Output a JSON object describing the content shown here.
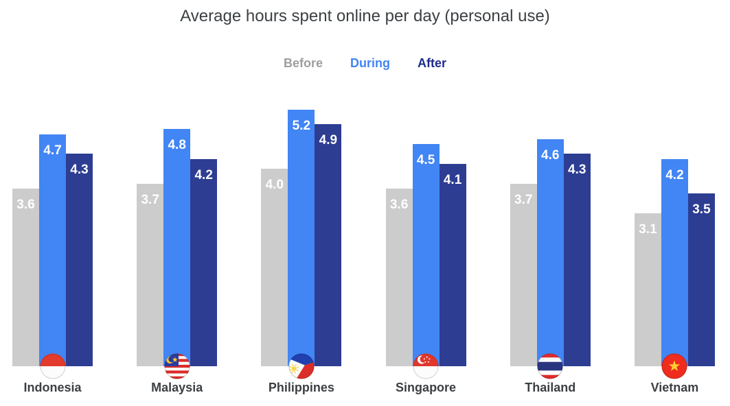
{
  "title": "Average hours spent online per day (personal use)",
  "legend": [
    {
      "label": "Before",
      "color": "#9e9e9e"
    },
    {
      "label": "During",
      "color": "#4285f4"
    },
    {
      "label": "After",
      "color": "#1e2b8c"
    }
  ],
  "chart_data": {
    "type": "bar",
    "title": "Average hours spent online per day (personal use)",
    "categories": [
      "Indonesia",
      "Malaysia",
      "Philippines",
      "Singapore",
      "Thailand",
      "Vietnam"
    ],
    "series": [
      {
        "name": "Before",
        "color": "#cccccc",
        "values": [
          3.6,
          3.7,
          4.0,
          3.6,
          3.7,
          3.1
        ]
      },
      {
        "name": "During",
        "color": "#4285f4",
        "values": [
          4.7,
          4.8,
          5.2,
          4.5,
          4.6,
          4.2
        ]
      },
      {
        "name": "After",
        "color": "#2d3d92",
        "values": [
          4.3,
          4.2,
          4.9,
          4.1,
          4.3,
          3.5
        ]
      }
    ],
    "value_label_color": "#ffffff",
    "value_format_decimals": 1,
    "unit": "hours",
    "ylim": [
      0,
      5.5
    ],
    "grid": false,
    "axes_visible": false,
    "legend_position": "top",
    "flags": [
      "indonesia-flag-icon",
      "malaysia-flag-icon",
      "philippines-flag-icon",
      "singapore-flag-icon",
      "thailand-flag-icon",
      "vietnam-flag-icon"
    ]
  }
}
